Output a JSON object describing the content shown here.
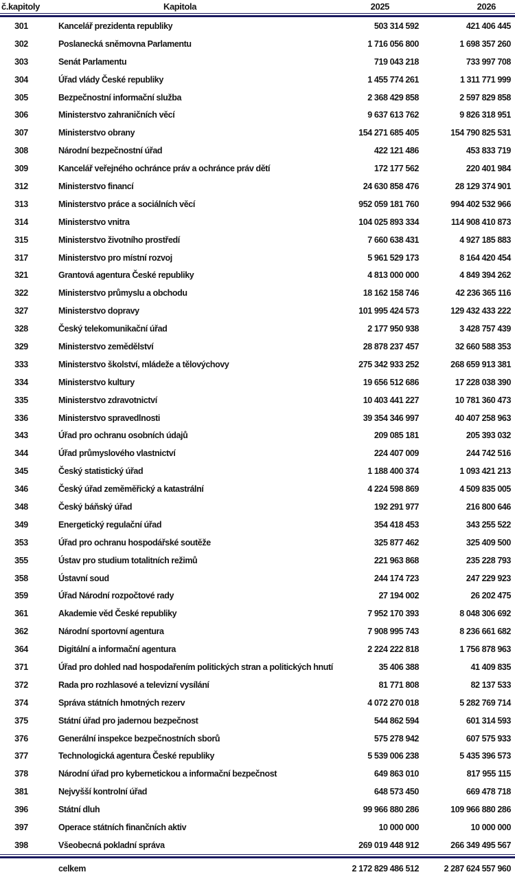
{
  "colors": {
    "rule_navy": "#1a1a5e",
    "text": "#141414",
    "background": "#ffffff"
  },
  "table": {
    "headers": {
      "col_number": "č.kapitoly",
      "col_name": "Kapitola",
      "col_2025": "2025",
      "col_2026": "2026"
    },
    "rows": [
      [
        "301",
        "Kancelář prezidenta republiky",
        "503 314 592",
        "421 406 445"
      ],
      [
        "302",
        "Poslanecká sněmovna Parlamentu",
        "1 716 056 800",
        "1 698 357 260"
      ],
      [
        "303",
        "Senát Parlamentu",
        "719 043 218",
        "733 997 708"
      ],
      [
        "304",
        "Úřad vlády České republiky",
        "1 455 774 261",
        "1 311 771 999"
      ],
      [
        "305",
        "Bezpečnostní informační služba",
        "2 368 429 858",
        "2 597 829 858"
      ],
      [
        "306",
        "Ministerstvo zahraničních věcí",
        "9 637 613 762",
        "9 826 318 951"
      ],
      [
        "307",
        "Ministerstvo obrany",
        "154 271 685 405",
        "154 790 825 531"
      ],
      [
        "308",
        "Národní bezpečnostní úřad",
        "422 121 486",
        "453 833 719"
      ],
      [
        "309",
        "Kancelář veřejného ochránce práv a ochránce práv dětí",
        "172 177 562",
        "220 401 984"
      ],
      [
        "312",
        "Ministerstvo financí",
        "24 630 858 476",
        "28 129 374 901"
      ],
      [
        "313",
        "Ministerstvo práce a sociálních věcí",
        "952 059 181 760",
        "994 402 532 966"
      ],
      [
        "314",
        "Ministerstvo vnitra",
        "104 025 893 334",
        "114 908 410 873"
      ],
      [
        "315",
        "Ministerstvo životního prostředí",
        "7 660 638 431",
        "4 927 185 883"
      ],
      [
        "317",
        "Ministerstvo pro místní rozvoj",
        "5 961 529 173",
        "8 164 420 454"
      ],
      [
        "321",
        "Grantová agentura České republiky",
        "4 813 000 000",
        "4 849 394 262"
      ],
      [
        "322",
        "Ministerstvo průmyslu a obchodu",
        "18 162 158 746",
        "42 236 365 116"
      ],
      [
        "327",
        "Ministerstvo dopravy",
        "101 995 424 573",
        "129 432 433 222"
      ],
      [
        "328",
        "Český telekomunikační úřad",
        "2 177 950 938",
        "3 428 757 439"
      ],
      [
        "329",
        "Ministerstvo zemědělství",
        "28 878 237 457",
        "32 660 588 353"
      ],
      [
        "333",
        "Ministerstvo školství, mládeže a tělovýchovy",
        "275 342 933 252",
        "268 659 913 381"
      ],
      [
        "334",
        "Ministerstvo kultury",
        "19 656 512 686",
        "17 228 038 390"
      ],
      [
        "335",
        "Ministerstvo zdravotnictví",
        "10 403 441 227",
        "10 781 360 473"
      ],
      [
        "336",
        "Ministerstvo spravedlnosti",
        "39 354 346 997",
        "40 407 258 963"
      ],
      [
        "343",
        "Úřad pro ochranu osobních údajů",
        "209 085 181",
        "205 393 032"
      ],
      [
        "344",
        "Úřad průmyslového vlastnictví",
        "224 407 009",
        "244 742 516"
      ],
      [
        "345",
        "Český statistický úřad",
        "1 188 400 374",
        "1 093 421 213"
      ],
      [
        "346",
        "Český úřad zeměměřický a katastrální",
        "4 224 598 869",
        "4 509 835 005"
      ],
      [
        "348",
        "Český báňský úřad",
        "192 291 977",
        "216 800 646"
      ],
      [
        "349",
        "Energetický regulační úřad",
        "354 418 453",
        "343 255 522"
      ],
      [
        "353",
        "Úřad pro ochranu hospodářské soutěže",
        "325 877 462",
        "325 409 500"
      ],
      [
        "355",
        "Ústav pro studium totalitních režimů",
        "221 963 868",
        "235 228 793"
      ],
      [
        "358",
        "Ústavní soud",
        "244 174 723",
        "247 229 923"
      ],
      [
        "359",
        "Úřad Národní rozpočtové rady",
        "27 194 002",
        "26 202 475"
      ],
      [
        "361",
        "Akademie věd České republiky",
        "7 952 170 393",
        "8 048 306 692"
      ],
      [
        "362",
        "Národní sportovní agentura",
        "7 908 995 743",
        "8 236 661 682"
      ],
      [
        "364",
        "Digitální a informační agentura",
        "2 224 222 818",
        "1 756 878 963"
      ],
      [
        "371",
        "Úřad pro dohled nad hospodařením politických stran a politických hnutí",
        "35 406 388",
        "41 409 835"
      ],
      [
        "372",
        "Rada pro rozhlasové a televizní vysílání",
        "81 771 808",
        "82 137 533"
      ],
      [
        "374",
        "Správa státních hmotných rezerv",
        "4 072 270 018",
        "5 282 769 714"
      ],
      [
        "375",
        "Státní úřad pro jadernou bezpečnost",
        "544 862 594",
        "601 314 593"
      ],
      [
        "376",
        "Generální inspekce bezpečnostních sborů",
        "575 278 942",
        "607 575 933"
      ],
      [
        "377",
        "Technologická agentura České republiky",
        "5 539 006 238",
        "5 435 396 573"
      ],
      [
        "378",
        "Národní úřad pro kybernetickou a informační bezpečnost",
        "649 863 010",
        "817 955 115"
      ],
      [
        "381",
        "Nejvyšší kontrolní úřad",
        "648 573 450",
        "669 478 718"
      ],
      [
        "396",
        "Státní dluh",
        "99 966 880 286",
        "109 966 880 286"
      ],
      [
        "397",
        "Operace státních finančních aktiv",
        "10 000 000",
        "10 000 000"
      ],
      [
        "398",
        "Všeobecná pokladní správa",
        "269 019 448 912",
        "266 349 495 567"
      ]
    ],
    "total": {
      "label": "celkem",
      "value_2025": "2 172 829 486 512",
      "value_2026": "2 287 624 557 960"
    }
  }
}
